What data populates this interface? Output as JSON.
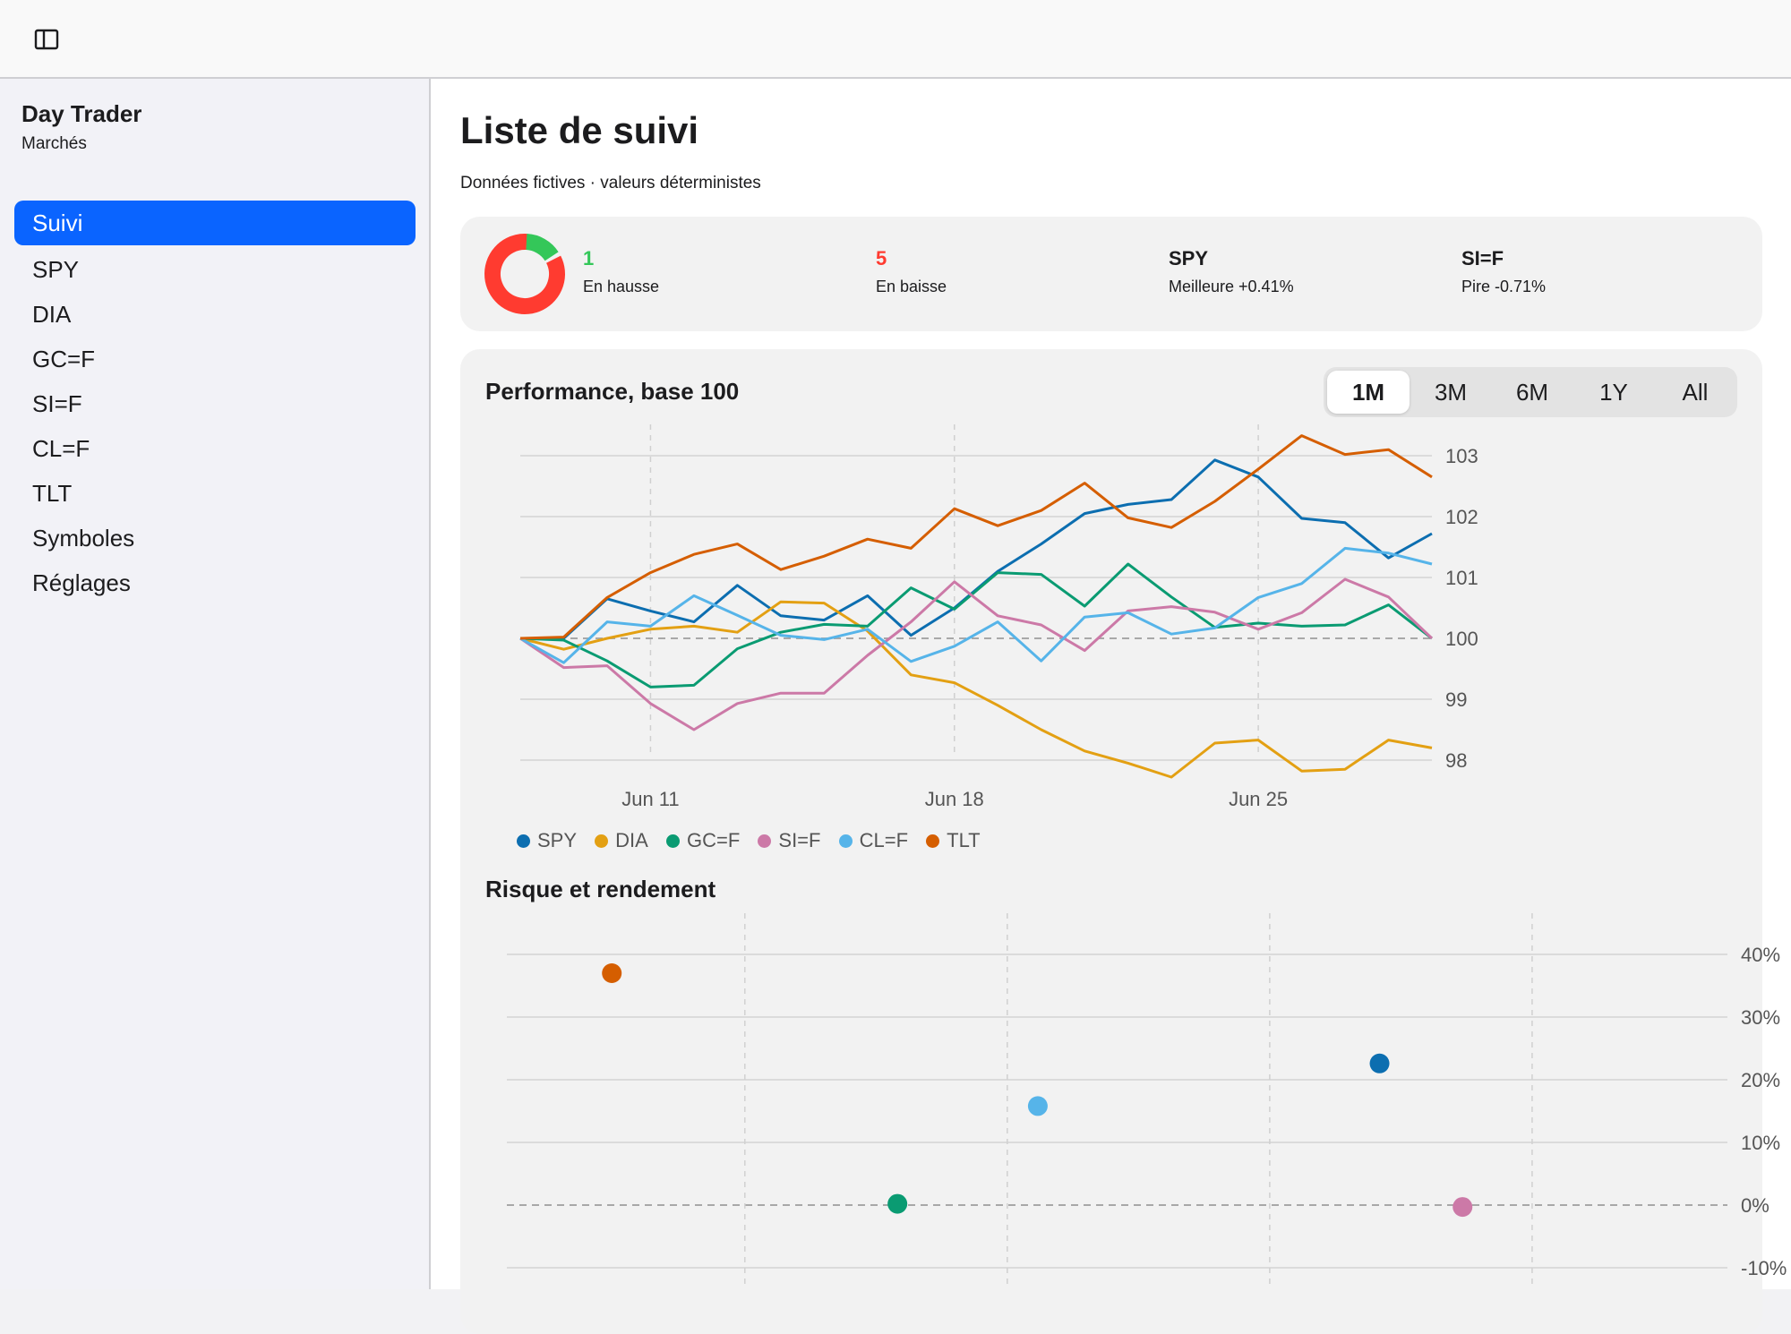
{
  "sidebar": {
    "app_name": "Day Trader",
    "subtitle": "Marchés",
    "items": [
      {
        "label": "Suivi",
        "active": true
      },
      {
        "label": "SPY"
      },
      {
        "label": "DIA"
      },
      {
        "label": "GC=F"
      },
      {
        "label": "SI=F"
      },
      {
        "label": "CL=F"
      },
      {
        "label": "TLT"
      },
      {
        "label": "Symboles"
      },
      {
        "label": "Réglages"
      }
    ]
  },
  "main": {
    "title": "Liste de suivi",
    "subtitle": "Données fictives · valeurs déterministes"
  },
  "summary": {
    "up_count": "1",
    "up_label": "En hausse",
    "down_count": "5",
    "down_label": "En baisse",
    "best_symbol": "SPY",
    "best_label": "Meilleure +0.41%",
    "worst_symbol": "SI=F",
    "worst_label": "Pire -0.71%",
    "up_color": "#34c759",
    "down_color": "#ff3b30"
  },
  "performance": {
    "title": "Performance, base 100",
    "ranges": [
      "1M",
      "3M",
      "6M",
      "1Y",
      "All"
    ],
    "selected_range": "1M"
  },
  "risk": {
    "title": "Risque et rendement"
  },
  "chart_data": [
    {
      "type": "line",
      "title": "Performance, base 100",
      "x_ticks": [
        "Jun 11",
        "Jun 18",
        "Jun 25"
      ],
      "ylim": [
        97.7,
        103.3
      ],
      "y_ticks": [
        98,
        99,
        100,
        101,
        102,
        103
      ],
      "baseline": 100,
      "grid": true,
      "legend_position": "bottom-left",
      "series": [
        {
          "name": "SPY",
          "color": "#0c6eb0",
          "values": [
            100,
            100,
            100.65,
            100.45,
            100.27,
            100.87,
            100.37,
            100.3,
            100.7,
            100.05,
            100.5,
            101.1,
            101.55,
            102.05,
            102.2,
            102.28,
            102.93,
            102.65,
            101.97,
            101.9,
            101.32,
            101.72
          ]
        },
        {
          "name": "DIA",
          "color": "#e3a013",
          "values": [
            100,
            99.82,
            100,
            100.15,
            100.2,
            100.1,
            100.6,
            100.58,
            100.12,
            99.4,
            99.27,
            98.9,
            98.5,
            98.15,
            97.95,
            97.72,
            98.28,
            98.33,
            97.82,
            97.85,
            98.33,
            98.2
          ]
        },
        {
          "name": "GC=F",
          "color": "#0a9b72",
          "values": [
            100,
            99.97,
            99.63,
            99.2,
            99.23,
            99.83,
            100.1,
            100.23,
            100.2,
            100.83,
            100.48,
            101.08,
            101.05,
            100.53,
            101.22,
            100.68,
            100.18,
            100.25,
            100.2,
            100.22,
            100.55,
            100
          ]
        },
        {
          "name": "SI=F",
          "color": "#cc79a7",
          "values": [
            100,
            99.52,
            99.55,
            98.93,
            98.5,
            98.93,
            99.1,
            99.1,
            99.72,
            100.27,
            100.93,
            100.37,
            100.22,
            99.8,
            100.45,
            100.52,
            100.43,
            100.15,
            100.42,
            100.97,
            100.68,
            100
          ]
        },
        {
          "name": "CL=F",
          "color": "#56b4e9",
          "values": [
            100,
            99.6,
            100.27,
            100.2,
            100.7,
            100.38,
            100.05,
            99.98,
            100.15,
            99.62,
            99.87,
            100.27,
            99.63,
            100.35,
            100.42,
            100.07,
            100.17,
            100.67,
            100.9,
            101.48,
            101.4,
            101.22
          ]
        },
        {
          "name": "TLT",
          "color": "#d55e00",
          "values": [
            100,
            100.02,
            100.67,
            101.08,
            101.38,
            101.55,
            101.13,
            101.35,
            101.63,
            101.48,
            102.13,
            101.85,
            102.1,
            102.55,
            101.98,
            101.82,
            102.25,
            102.78,
            103.33,
            103.02,
            103.1,
            102.65
          ]
        }
      ]
    },
    {
      "type": "scatter",
      "title": "Risque et rendement",
      "ylim": [
        -15,
        43
      ],
      "y_ticks_labels": [
        "40%",
        "30%",
        "20%",
        "10%",
        "0%",
        "-10%"
      ],
      "y_ticks": [
        40,
        30,
        20,
        10,
        0,
        -10
      ],
      "xlim": [
        0,
        100
      ],
      "x_grid": [
        19.5,
        41,
        62.5,
        84
      ],
      "baseline": 0,
      "points": [
        {
          "name": "TLT",
          "color": "#d55e00",
          "x": 8.6,
          "y": 37
        },
        {
          "name": "GC=F",
          "color": "#0a9b72",
          "x": 32,
          "y": 0.2
        },
        {
          "name": "CL=F",
          "color": "#56b4e9",
          "x": 43.5,
          "y": 15.8
        },
        {
          "name": "SPY",
          "color": "#0c6eb0",
          "x": 71.5,
          "y": 22.6
        },
        {
          "name": "SI=F",
          "color": "#cc79a7",
          "x": 78.3,
          "y": -0.3
        }
      ]
    }
  ]
}
